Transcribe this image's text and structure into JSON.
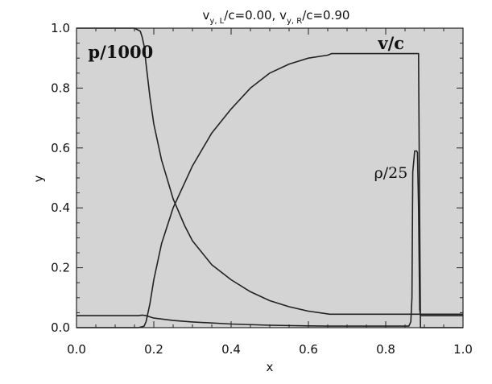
{
  "chart_data": {
    "type": "line",
    "title": {
      "prefix_1": "v",
      "sub_1": "y, L",
      "mid": "/c=0.00,  v",
      "sub_2": "y, R",
      "suffix": "/c=0.90"
    },
    "xlabel": "x",
    "ylabel": "y",
    "xlim": [
      0.0,
      1.0
    ],
    "ylim": [
      0.0,
      1.0
    ],
    "x_ticks": [
      "0.0",
      "0.2",
      "0.4",
      "0.6",
      "0.8",
      "1.0"
    ],
    "y_ticks": [
      "0.0",
      "0.2",
      "0.4",
      "0.6",
      "0.8",
      "1.0"
    ],
    "background": "#d4d4d4",
    "line_color": "#222222",
    "annotations": [
      {
        "id": "p",
        "text": "p/1000",
        "x": 0.03,
        "y": 0.9
      },
      {
        "id": "v",
        "text": "v/c",
        "x": 0.78,
        "y": 0.93
      },
      {
        "id": "rho",
        "text": "ρ/25",
        "x": 0.77,
        "y": 0.5
      }
    ],
    "series": [
      {
        "key": "pressure",
        "x": [
          0.0,
          0.15,
          0.165,
          0.17,
          0.175,
          0.18,
          0.19,
          0.2,
          0.22,
          0.25,
          0.28,
          0.3,
          0.35,
          0.4,
          0.45,
          0.5,
          0.55,
          0.6,
          0.65,
          0.655,
          0.87,
          0.875,
          0.885,
          0.89,
          1.0
        ],
        "y": [
          1.0,
          1.0,
          0.99,
          0.97,
          0.94,
          0.88,
          0.77,
          0.68,
          0.56,
          0.43,
          0.34,
          0.29,
          0.21,
          0.16,
          0.12,
          0.09,
          0.07,
          0.055,
          0.046,
          0.045,
          0.045,
          0.045,
          0.045,
          0.045,
          0.045
        ]
      },
      {
        "key": "velocity",
        "x": [
          0.0,
          0.16,
          0.175,
          0.18,
          0.19,
          0.2,
          0.22,
          0.25,
          0.3,
          0.35,
          0.4,
          0.45,
          0.5,
          0.55,
          0.6,
          0.65,
          0.66,
          0.8,
          0.87,
          0.885,
          0.887,
          0.89,
          1.0
        ],
        "y": [
          0.0,
          0.0,
          0.005,
          0.02,
          0.08,
          0.16,
          0.28,
          0.4,
          0.54,
          0.65,
          0.73,
          0.8,
          0.85,
          0.88,
          0.9,
          0.91,
          0.915,
          0.915,
          0.915,
          0.915,
          0.5,
          0.0,
          0.0
        ]
      },
      {
        "key": "density",
        "x": [
          0.0,
          0.16,
          0.17,
          0.18,
          0.2,
          0.25,
          0.3,
          0.4,
          0.5,
          0.6,
          0.65,
          0.8,
          0.86,
          0.865,
          0.868,
          0.87,
          0.875,
          0.88,
          0.882,
          0.885,
          0.888,
          0.89,
          1.0
        ],
        "y": [
          0.04,
          0.04,
          0.042,
          0.04,
          0.032,
          0.024,
          0.019,
          0.012,
          0.008,
          0.006,
          0.005,
          0.005,
          0.005,
          0.02,
          0.1,
          0.52,
          0.59,
          0.59,
          0.585,
          0.4,
          0.06,
          0.04,
          0.04
        ]
      }
    ]
  }
}
